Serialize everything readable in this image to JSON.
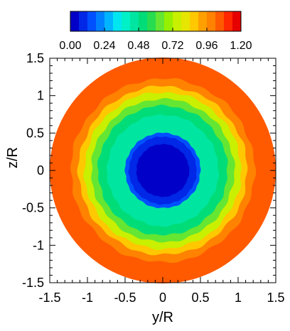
{
  "chart_data": {
    "type": "heatmap",
    "title": "",
    "xlabel": "y/R",
    "ylabel": "z/R",
    "xlim": [
      -1.5,
      1.5
    ],
    "ylim": [
      -1.5,
      1.5
    ],
    "xticks": [
      "-1.5",
      "-1",
      "-0.5",
      "0",
      "0.5",
      "1",
      "1.5"
    ],
    "yticks": [
      "1.5",
      "1",
      "0.5",
      "0",
      "-0.5",
      "-1",
      "-1.5"
    ],
    "grid": false,
    "colorbar": {
      "placement": "top",
      "range": [
        0,
        1.2
      ],
      "tick_labels": [
        "0.00",
        "0.24",
        "0.48",
        "0.72",
        "0.96",
        "1.20"
      ],
      "colors": [
        "#0000c8",
        "#0028e6",
        "#0050ff",
        "#0080ff",
        "#00b4ff",
        "#00e6f0",
        "#00f0c8",
        "#00e6a0",
        "#00dc78",
        "#28dc50",
        "#64e632",
        "#96f000",
        "#c8f000",
        "#e6e600",
        "#ffc800",
        "#ffa000",
        "#ff8200",
        "#ff5a00",
        "#ff2800",
        "#e60000"
      ]
    },
    "field": {
      "shape": "disk",
      "radius": 1.5,
      "rings": [
        {
          "r_outer": 1.5,
          "value": 1.04
        },
        {
          "r_outer": 1.22,
          "value": 0.96
        },
        {
          "r_outer": 1.12,
          "value": 0.86
        },
        {
          "r_outer": 1.04,
          "value": 0.74
        },
        {
          "r_outer": 0.95,
          "value": 0.62
        },
        {
          "r_outer": 0.86,
          "value": 0.53
        },
        {
          "r_outer": 0.74,
          "value": 0.47
        },
        {
          "r_outer": 0.6,
          "value": 0.43
        },
        {
          "r_outer": 0.5,
          "value": 0.12
        },
        {
          "r_outer": 0.45,
          "value": 0.06
        },
        {
          "r_outer": 0.35,
          "value": 0.03
        }
      ]
    }
  }
}
